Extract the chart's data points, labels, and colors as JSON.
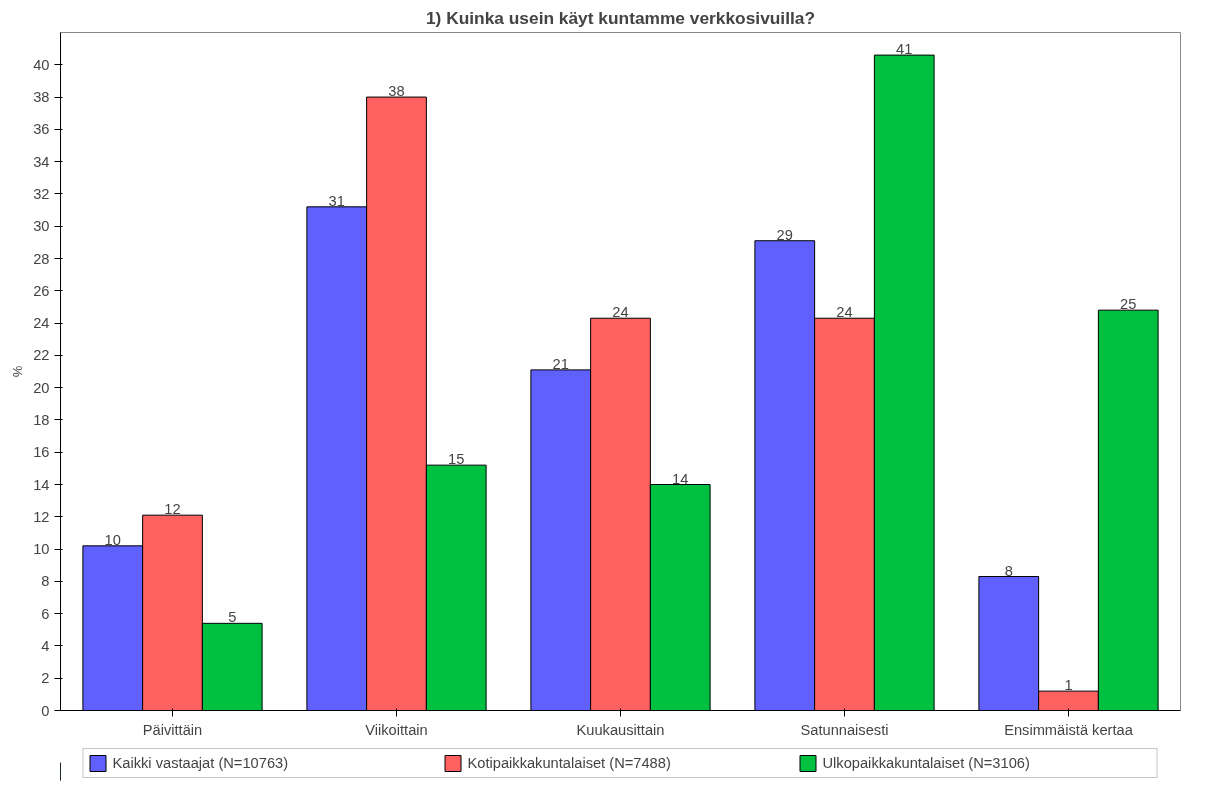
{
  "chart_data": {
    "type": "bar",
    "title": "1) Kuinka usein käyt kuntamme verkkosivuilla?",
    "ylabel": "%",
    "categories": [
      "Päivittäin",
      "Viikoittain",
      "Kuukausittain",
      "Satunnaisesti",
      "Ensimmäistä kertaa"
    ],
    "series": [
      {
        "name": "Kaikki vastaajat (N=10763)",
        "color": "#6060ff",
        "values": [
          10.2,
          31.2,
          21.1,
          29.1,
          8.3
        ],
        "value_labels": [
          "10",
          "31",
          "21",
          "29",
          "8"
        ]
      },
      {
        "name": "Kotipaikkakuntalaiset (N=7488)",
        "color": "#ff6060",
        "values": [
          12.1,
          38.0,
          24.3,
          24.3,
          1.2
        ],
        "value_labels": [
          "12",
          "38",
          "24",
          "24",
          "1"
        ]
      },
      {
        "name": "Ulkopaikkakuntalaiset (N=3106)",
        "color": "#00c040",
        "values": [
          5.4,
          15.2,
          14.0,
          40.6,
          24.8
        ],
        "value_labels": [
          "5",
          "15",
          "14",
          "41",
          "25"
        ]
      }
    ],
    "ylim": [
      0,
      42
    ],
    "yticks": [
      0,
      2,
      4,
      6,
      8,
      10,
      12,
      14,
      16,
      18,
      20,
      22,
      24,
      26,
      28,
      30,
      32,
      34,
      36,
      38,
      40
    ],
    "grid": false,
    "legend": "bottom"
  }
}
